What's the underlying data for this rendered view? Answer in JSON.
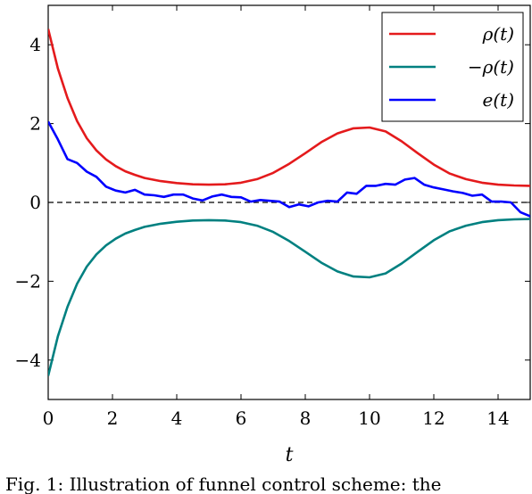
{
  "chart_data": {
    "type": "line",
    "xlabel": "t",
    "ylabel": "",
    "xlim": [
      0,
      15
    ],
    "ylim": [
      -5,
      5
    ],
    "xticks": [
      0,
      2,
      4,
      6,
      8,
      10,
      12,
      14
    ],
    "yticks": [
      -4,
      -2,
      0,
      2,
      4
    ],
    "xtick_labels": [
      "0",
      "2",
      "4",
      "6",
      "8",
      "10",
      "12",
      "14"
    ],
    "ytick_labels": [
      "−4",
      "−2",
      "0",
      "2",
      "4"
    ],
    "grid": false,
    "legend_position": "top-right",
    "reference_line": {
      "y": 0,
      "style": "dashed",
      "color": "#000000"
    },
    "series": [
      {
        "name": "ρ(t)",
        "color": "#e41a1c",
        "x": [
          0,
          0.3,
          0.6,
          0.9,
          1.2,
          1.5,
          1.8,
          2.1,
          2.4,
          2.7,
          3.0,
          3.5,
          4.0,
          4.5,
          5.0,
          5.5,
          6.0,
          6.5,
          7.0,
          7.5,
          8.0,
          8.5,
          9.0,
          9.5,
          10.0,
          10.5,
          11.0,
          11.5,
          12.0,
          12.5,
          13.0,
          13.5,
          14.0,
          14.5,
          15.0
        ],
        "values": [
          4.4,
          3.4,
          2.65,
          2.06,
          1.63,
          1.32,
          1.09,
          0.92,
          0.79,
          0.7,
          0.62,
          0.54,
          0.49,
          0.46,
          0.45,
          0.46,
          0.5,
          0.59,
          0.75,
          0.98,
          1.25,
          1.53,
          1.75,
          1.88,
          1.9,
          1.8,
          1.55,
          1.25,
          0.96,
          0.73,
          0.59,
          0.5,
          0.45,
          0.43,
          0.42
        ]
      },
      {
        "name": "−ρ(t)",
        "color": "#008080",
        "x": [
          0,
          0.3,
          0.6,
          0.9,
          1.2,
          1.5,
          1.8,
          2.1,
          2.4,
          2.7,
          3.0,
          3.5,
          4.0,
          4.5,
          5.0,
          5.5,
          6.0,
          6.5,
          7.0,
          7.5,
          8.0,
          8.5,
          9.0,
          9.5,
          10.0,
          10.5,
          11.0,
          11.5,
          12.0,
          12.5,
          13.0,
          13.5,
          14.0,
          14.5,
          15.0
        ],
        "values": [
          -4.4,
          -3.4,
          -2.65,
          -2.06,
          -1.63,
          -1.32,
          -1.09,
          -0.92,
          -0.79,
          -0.7,
          -0.62,
          -0.54,
          -0.49,
          -0.46,
          -0.45,
          -0.46,
          -0.5,
          -0.59,
          -0.75,
          -0.98,
          -1.25,
          -1.53,
          -1.75,
          -1.88,
          -1.9,
          -1.8,
          -1.55,
          -1.25,
          -0.96,
          -0.73,
          -0.59,
          -0.5,
          -0.45,
          -0.43,
          -0.42
        ]
      },
      {
        "name": "e(t)",
        "color": "#0000ff",
        "x": [
          0,
          0.3,
          0.6,
          0.9,
          1.2,
          1.5,
          1.8,
          2.1,
          2.4,
          2.7,
          3.0,
          3.3,
          3.6,
          3.9,
          4.2,
          4.5,
          4.8,
          5.1,
          5.4,
          5.7,
          6.0,
          6.3,
          6.6,
          6.9,
          7.2,
          7.5,
          7.8,
          8.1,
          8.4,
          8.7,
          9.0,
          9.3,
          9.6,
          9.9,
          10.2,
          10.5,
          10.8,
          11.1,
          11.4,
          11.7,
          12.0,
          12.3,
          12.6,
          12.9,
          13.2,
          13.5,
          13.8,
          14.1,
          14.4,
          14.7,
          15.0
        ],
        "values": [
          2.05,
          1.6,
          1.1,
          1.0,
          0.78,
          0.65,
          0.4,
          0.3,
          0.25,
          0.32,
          0.2,
          0.18,
          0.14,
          0.2,
          0.2,
          0.1,
          0.05,
          0.15,
          0.2,
          0.14,
          0.13,
          0.02,
          0.06,
          0.04,
          0.02,
          -0.12,
          -0.05,
          -0.1,
          0.0,
          0.04,
          0.02,
          0.25,
          0.22,
          0.42,
          0.42,
          0.47,
          0.45,
          0.58,
          0.62,
          0.45,
          0.38,
          0.33,
          0.28,
          0.24,
          0.17,
          0.2,
          0.02,
          0.02,
          0.0,
          -0.25,
          -0.35
        ]
      }
    ]
  },
  "caption": "Fig. 1: Illustration of funnel control scheme: the"
}
